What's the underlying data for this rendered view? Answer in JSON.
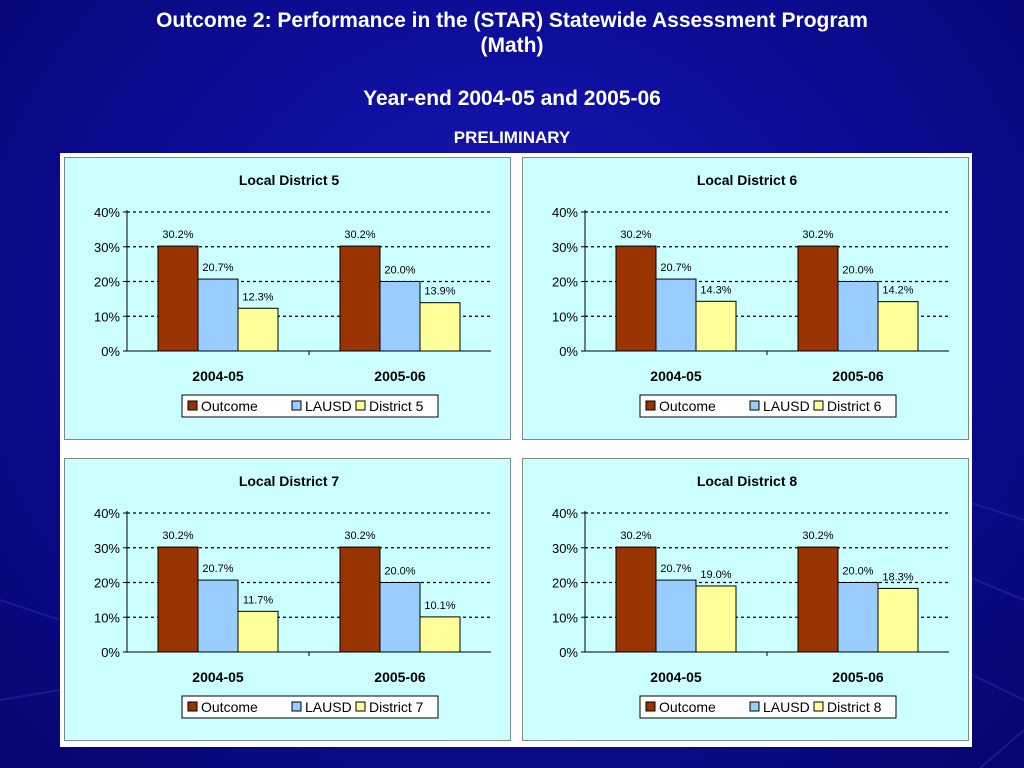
{
  "slide": {
    "title_line1": "Outcome 2: Performance in the (STAR) Statewide Assessment Program",
    "title_line2": "(Math)",
    "subtitle": "Year-end 2004-05 and 2005-06",
    "tag": "PRELIMINARY"
  },
  "colors": {
    "outcome": "#993300",
    "lausd": "#99ccff",
    "district": "#ffff99",
    "panel_bg": "#ccffff",
    "background": "#0d0d9a"
  },
  "chart_data": [
    {
      "type": "bar",
      "title": "Local District 5",
      "categories": [
        "2004-05",
        "2005-06"
      ],
      "series": [
        {
          "name": "Outcome",
          "values": [
            30.2,
            30.2
          ],
          "labels": [
            "30.2%",
            "30.2%"
          ]
        },
        {
          "name": "LAUSD",
          "values": [
            20.7,
            20.0
          ],
          "labels": [
            "20.7%",
            "20.0%"
          ]
        },
        {
          "name": "District 5",
          "values": [
            12.3,
            13.9
          ],
          "labels": [
            "12.3%",
            "13.9%"
          ]
        }
      ],
      "yticks": [
        "0%",
        "10%",
        "20%",
        "30%",
        "40%"
      ],
      "ylim": [
        0,
        40
      ],
      "grid": "dashed",
      "legend": "bottom"
    },
    {
      "type": "bar",
      "title": "Local District 6",
      "categories": [
        "2004-05",
        "2005-06"
      ],
      "series": [
        {
          "name": "Outcome",
          "values": [
            30.2,
            30.2
          ],
          "labels": [
            "30.2%",
            "30.2%"
          ]
        },
        {
          "name": "LAUSD",
          "values": [
            20.7,
            20.0
          ],
          "labels": [
            "20.7%",
            "20.0%"
          ]
        },
        {
          "name": "District 6",
          "values": [
            14.3,
            14.2
          ],
          "labels": [
            "14.3%",
            "14.2%"
          ]
        }
      ],
      "yticks": [
        "0%",
        "10%",
        "20%",
        "30%",
        "40%"
      ],
      "ylim": [
        0,
        40
      ],
      "grid": "dashed",
      "legend": "bottom"
    },
    {
      "type": "bar",
      "title": "Local District 7",
      "categories": [
        "2004-05",
        "2005-06"
      ],
      "series": [
        {
          "name": "Outcome",
          "values": [
            30.2,
            30.2
          ],
          "labels": [
            "30.2%",
            "30.2%"
          ]
        },
        {
          "name": "LAUSD",
          "values": [
            20.7,
            20.0
          ],
          "labels": [
            "20.7%",
            "20.0%"
          ]
        },
        {
          "name": "District 7",
          "values": [
            11.7,
            10.1
          ],
          "labels": [
            "11.7%",
            "10.1%"
          ]
        }
      ],
      "yticks": [
        "0%",
        "10%",
        "20%",
        "30%",
        "40%"
      ],
      "ylim": [
        0,
        40
      ],
      "grid": "dashed",
      "legend": "bottom"
    },
    {
      "type": "bar",
      "title": "Local District 8",
      "categories": [
        "2004-05",
        "2005-06"
      ],
      "series": [
        {
          "name": "Outcome",
          "values": [
            30.2,
            30.2
          ],
          "labels": [
            "30.2%",
            "30.2%"
          ]
        },
        {
          "name": "LAUSD",
          "values": [
            20.7,
            20.0
          ],
          "labels": [
            "20.7%",
            "20.0%"
          ]
        },
        {
          "name": "District 8",
          "values": [
            19.0,
            18.3
          ],
          "labels": [
            "19.0%",
            "18.3%"
          ]
        }
      ],
      "yticks": [
        "0%",
        "10%",
        "20%",
        "30%",
        "40%"
      ],
      "ylim": [
        0,
        40
      ],
      "grid": "dashed",
      "legend": "bottom"
    }
  ]
}
